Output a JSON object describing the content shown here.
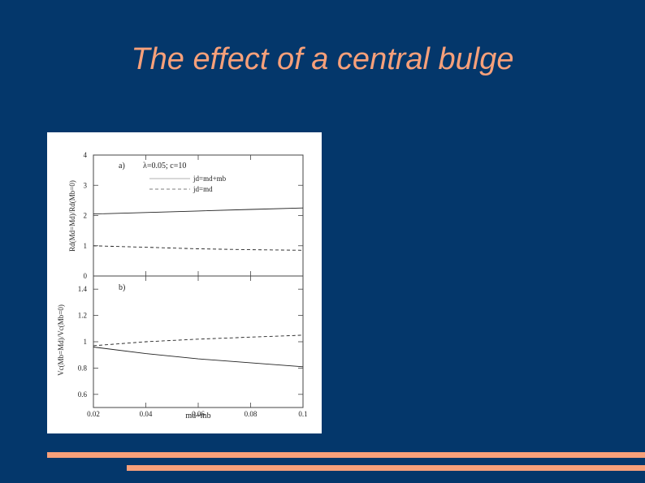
{
  "slide": {
    "title": "The effect of a central bulge"
  },
  "colors": {
    "background": "#04376b",
    "accent": "#f7a07a"
  },
  "chart_data": [
    {
      "type": "line",
      "panel_label": "a)",
      "annotation": "λ=0.05; c=10",
      "ylabel": "Rd(Md=Md)/Rd(Mb=0)",
      "ylim": [
        0,
        4
      ],
      "yticks": [
        0,
        1,
        2,
        3,
        4
      ],
      "xlim": [
        0.02,
        0.1
      ],
      "grid": false,
      "legend_position": "top-right",
      "series": [
        {
          "name": "jd=md+mb",
          "style": "solid",
          "x": [
            0.02,
            0.04,
            0.06,
            0.08,
            0.1
          ],
          "values": [
            2.05,
            2.1,
            2.15,
            2.2,
            2.25
          ]
        },
        {
          "name": "jd=md",
          "style": "dashed",
          "x": [
            0.02,
            0.04,
            0.06,
            0.08,
            0.1
          ],
          "values": [
            1.0,
            0.95,
            0.9,
            0.87,
            0.85
          ]
        }
      ]
    },
    {
      "type": "line",
      "panel_label": "b)",
      "ylabel": "Vc(Mb=Md)/Vc(Mb=0)",
      "xlabel": "md+mb",
      "ylim": [
        0.5,
        1.5
      ],
      "yticks": [
        0.6,
        0.8,
        1,
        1.2,
        1.4
      ],
      "yticklabels": [
        "0.6",
        "0.8",
        "1",
        "1.2",
        "1.4"
      ],
      "xlim": [
        0.02,
        0.1
      ],
      "xticks": [
        0.02,
        0.04,
        0.06,
        0.08,
        0.1
      ],
      "xticklabels": [
        "0.02",
        "0.04",
        "0.06",
        "0.08",
        "0.1"
      ],
      "grid": false,
      "series": [
        {
          "style": "solid",
          "x": [
            0.02,
            0.04,
            0.06,
            0.08,
            0.1
          ],
          "values": [
            0.96,
            0.91,
            0.87,
            0.84,
            0.81
          ]
        },
        {
          "style": "dashed",
          "x": [
            0.02,
            0.04,
            0.06,
            0.08,
            0.1
          ],
          "values": [
            0.97,
            1.0,
            1.02,
            1.035,
            1.05
          ]
        }
      ]
    }
  ]
}
